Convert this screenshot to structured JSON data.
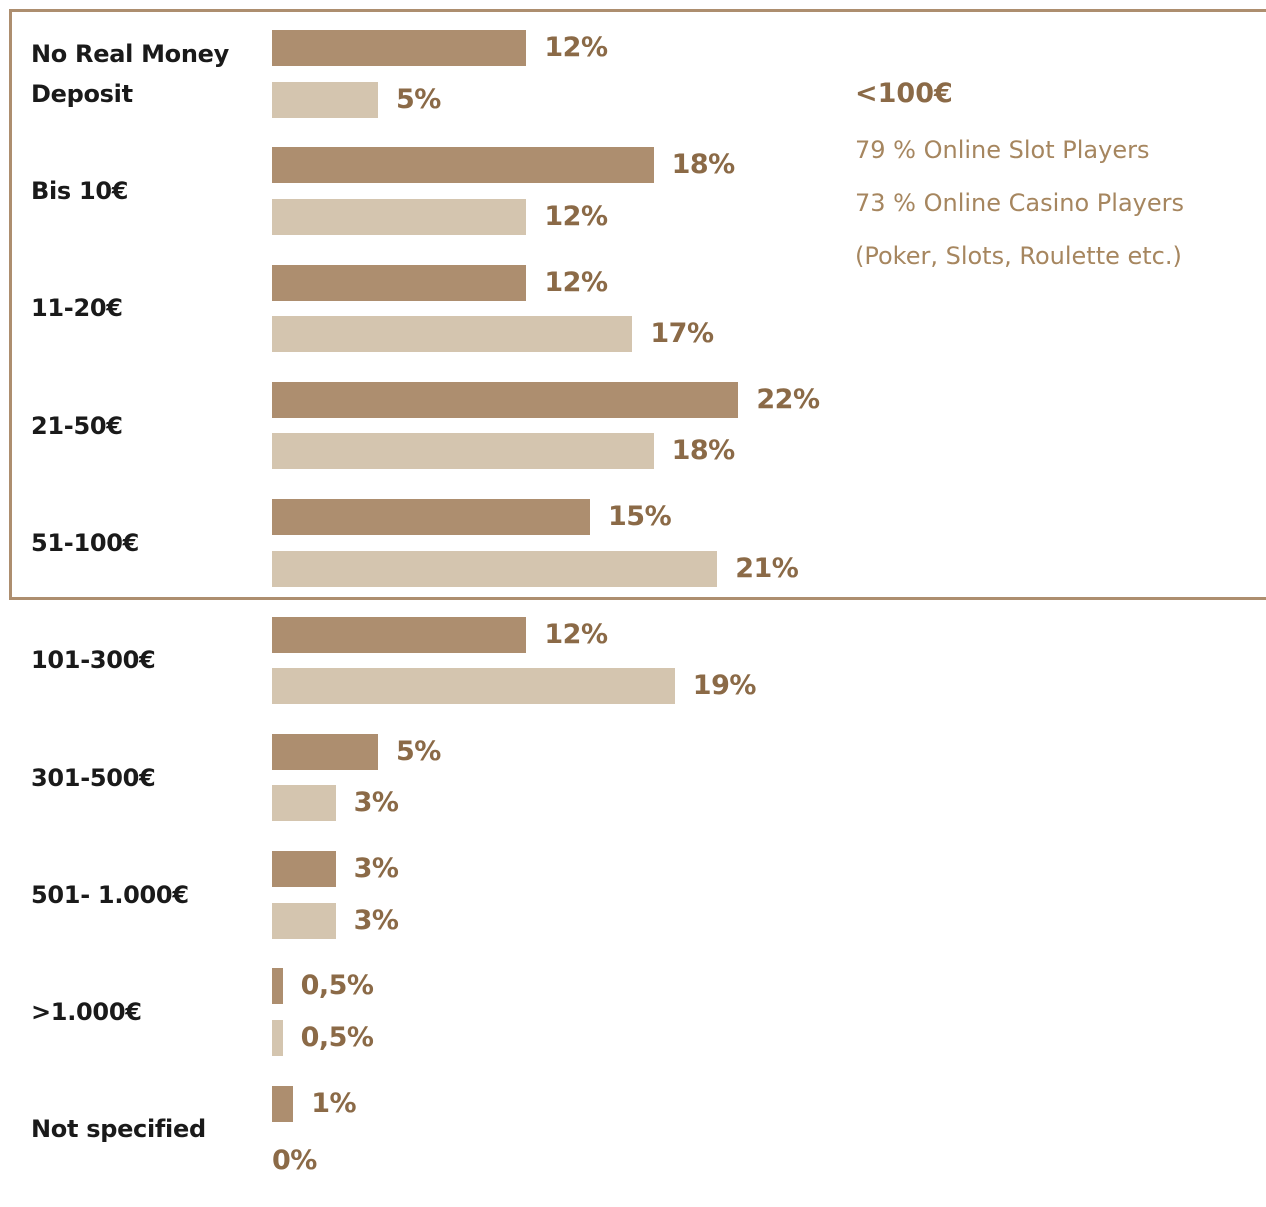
{
  "chart_data": {
    "type": "bar",
    "orientation": "horizontal",
    "categories": [
      [
        "No Real Money",
        "Deposit"
      ],
      [
        "Bis 10€"
      ],
      [
        "11-20€"
      ],
      [
        "21-50€"
      ],
      [
        "51-100€"
      ],
      [
        "101-300€"
      ],
      [
        "301-500€"
      ],
      [
        "501- 1.000€"
      ],
      [
        ">1.000€"
      ],
      [
        "Not specified"
      ]
    ],
    "series": [
      {
        "color": "#ad8e6f",
        "values": [
          12,
          18,
          12,
          22,
          15,
          12,
          5,
          3,
          0.5,
          1
        ],
        "labels": [
          "12%",
          "18%",
          "12%",
          "22%",
          "15%",
          "12%",
          "5%",
          "3%",
          "0,5%",
          "1%"
        ]
      },
      {
        "color": "#d4c5af",
        "values": [
          5,
          12,
          17,
          18,
          21,
          19,
          3,
          3,
          0.5,
          0
        ],
        "labels": [
          "5%",
          "12%",
          "17%",
          "18%",
          "21%",
          "19%",
          "3%",
          "3%",
          "0,5%",
          "0%"
        ]
      }
    ],
    "unit": "%",
    "highlight": {
      "range_categories": [
        "No Real Money Deposit",
        "Bis 10€",
        "11-20€",
        "21-50€",
        "51-100€"
      ],
      "title": "<100€",
      "lines": [
        "79 % Online Slot Players",
        "73 % Online Casino Players",
        "(Poker, Slots, Roulette etc.)"
      ],
      "border_color": "#ad8e6f"
    },
    "colors": {
      "category_text": "#1a1a1a",
      "value_text": "#8b6a47",
      "note_text": "#a6865f"
    }
  }
}
